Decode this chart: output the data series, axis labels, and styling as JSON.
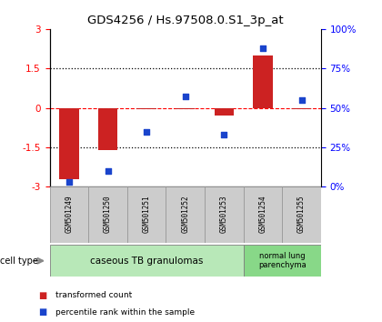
{
  "title": "GDS4256 / Hs.97508.0.S1_3p_at",
  "samples": [
    "GSM501249",
    "GSM501250",
    "GSM501251",
    "GSM501252",
    "GSM501253",
    "GSM501254",
    "GSM501255"
  ],
  "transformed_count": [
    -2.7,
    -1.6,
    -0.05,
    -0.05,
    -0.3,
    2.0,
    -0.05
  ],
  "percentile_rank": [
    3,
    10,
    35,
    57,
    33,
    88,
    55
  ],
  "ylim_left": [
    -3,
    3
  ],
  "ylim_right": [
    0,
    100
  ],
  "left_yticks": [
    -3,
    -1.5,
    0,
    1.5,
    3
  ],
  "right_yticks": [
    0,
    25,
    50,
    75,
    100
  ],
  "right_yticklabels": [
    "0%",
    "25%",
    "50%",
    "75%",
    "100%"
  ],
  "left_ytick_labels": [
    "-3",
    "-1.5",
    "0",
    "1.5",
    "3"
  ],
  "bar_color": "#cc2222",
  "scatter_color": "#1a44cc",
  "cell_type_groups": [
    {
      "label": "caseous TB granulomas",
      "indices": [
        0,
        1,
        2,
        3,
        4
      ],
      "color": "#b8e8b8"
    },
    {
      "label": "normal lung\nparenchyma",
      "indices": [
        5,
        6
      ],
      "color": "#88d888"
    }
  ],
  "legend_bar_label": "transformed count",
  "legend_scatter_label": "percentile rank within the sample",
  "cell_type_label": "cell type",
  "background_color": "#ffffff",
  "plot_bg": "#ffffff",
  "sample_box_color": "#cccccc",
  "sample_box_edge": "#999999"
}
